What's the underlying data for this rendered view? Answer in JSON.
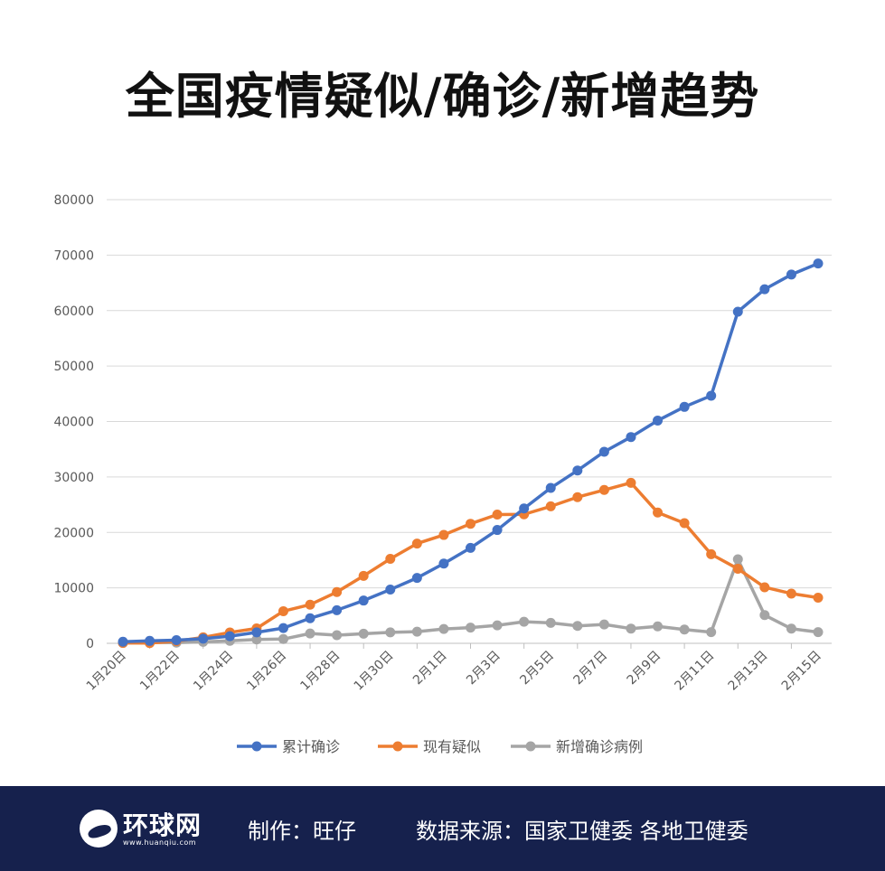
{
  "title": "全国疫情疑似/确诊/新增趋势",
  "chart_data": {
    "type": "line",
    "title": "全国疫情疑似/确诊/新增趋势",
    "xlabel": "",
    "ylabel": "",
    "ylim": [
      0,
      80000
    ],
    "yticks": [
      0,
      10000,
      20000,
      30000,
      40000,
      50000,
      60000,
      70000,
      80000
    ],
    "categories": [
      "1月20日",
      "1月21日",
      "1月22日",
      "1月23日",
      "1月24日",
      "1月25日",
      "1月26日",
      "1月27日",
      "1月28日",
      "1月29日",
      "1月30日",
      "1月31日",
      "2月1日",
      "2月2日",
      "2月3日",
      "2月4日",
      "2月5日",
      "2月6日",
      "2月7日",
      "2月8日",
      "2月9日",
      "2月10日",
      "2月11日",
      "2月12日",
      "2月13日",
      "2月14日",
      "2月15日"
    ],
    "x_tick_labels": [
      "1月20日",
      "1月22日",
      "1月24日",
      "1月26日",
      "1月28日",
      "1月30日",
      "2月1日",
      "2月3日",
      "2月5日",
      "2月7日",
      "2月9日",
      "2月11日",
      "2月13日",
      "2月15日"
    ],
    "grid": true,
    "legend_position": "bottom",
    "series": [
      {
        "name": "累计确诊",
        "color": "#4472c4",
        "values": [
          291,
          440,
          571,
          830,
          1287,
          1975,
          2744,
          4515,
          5974,
          7711,
          9692,
          11791,
          14380,
          17205,
          20438,
          24324,
          28018,
          31161,
          34546,
          37198,
          40171,
          42638,
          44653,
          59804,
          63851,
          66492,
          68500
        ]
      },
      {
        "name": "现有疑似",
        "color": "#ed7d31",
        "values": [
          54,
          37,
          393,
          1072,
          1965,
          2684,
          5794,
          6973,
          9239,
          12167,
          15238,
          17988,
          19544,
          21558,
          23214,
          23260,
          24702,
          26359,
          27657,
          28942,
          23589,
          21675,
          16067,
          13435,
          10109,
          8969,
          8228
        ]
      },
      {
        "name": "新增确诊病例",
        "color": "#a5a5a5",
        "values": [
          77,
          149,
          131,
          259,
          444,
          688,
          769,
          1771,
          1459,
          1737,
          1982,
          2102,
          2590,
          2829,
          3235,
          3887,
          3694,
          3143,
          3399,
          2656,
          3062,
          2478,
          2015,
          15152,
          5090,
          2641,
          2009
        ]
      }
    ]
  },
  "footer": {
    "logo_text": "环球网",
    "logo_url": "www.huanqiu.com",
    "maker": "制作：旺仔",
    "source": "数据来源：国家卫健委 各地卫健委",
    "background": "#16214d"
  }
}
